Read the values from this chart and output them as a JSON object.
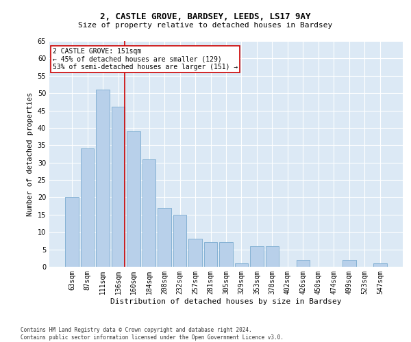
{
  "title1": "2, CASTLE GROVE, BARDSEY, LEEDS, LS17 9AY",
  "title2": "Size of property relative to detached houses in Bardsey",
  "xlabel": "Distribution of detached houses by size in Bardsey",
  "ylabel": "Number of detached properties",
  "footnote": "Contains HM Land Registry data © Crown copyright and database right 2024.\nContains public sector information licensed under the Open Government Licence v3.0.",
  "categories": [
    "63sqm",
    "87sqm",
    "111sqm",
    "136sqm",
    "160sqm",
    "184sqm",
    "208sqm",
    "232sqm",
    "257sqm",
    "281sqm",
    "305sqm",
    "329sqm",
    "353sqm",
    "378sqm",
    "402sqm",
    "426sqm",
    "450sqm",
    "474sqm",
    "499sqm",
    "523sqm",
    "547sqm"
  ],
  "values": [
    20,
    34,
    51,
    46,
    39,
    31,
    17,
    15,
    8,
    7,
    7,
    1,
    6,
    6,
    0,
    2,
    0,
    0,
    2,
    0,
    1
  ],
  "bar_color": "#b8d0ea",
  "bar_edge_color": "#7aaacf",
  "bg_color": "#dce9f5",
  "grid_color": "#ffffff",
  "vline_color": "#cc0000",
  "vline_x_index": 3,
  "annotation_text": "2 CASTLE GROVE: 151sqm\n← 45% of detached houses are smaller (129)\n53% of semi-detached houses are larger (151) →",
  "annotation_box_color": "#cc0000",
  "ylim": [
    0,
    65
  ],
  "yticks": [
    0,
    5,
    10,
    15,
    20,
    25,
    30,
    35,
    40,
    45,
    50,
    55,
    60,
    65
  ],
  "title1_fontsize": 9,
  "title2_fontsize": 8,
  "ylabel_fontsize": 7.5,
  "xlabel_fontsize": 8,
  "tick_fontsize": 7,
  "annot_fontsize": 7,
  "footnote_fontsize": 5.5
}
